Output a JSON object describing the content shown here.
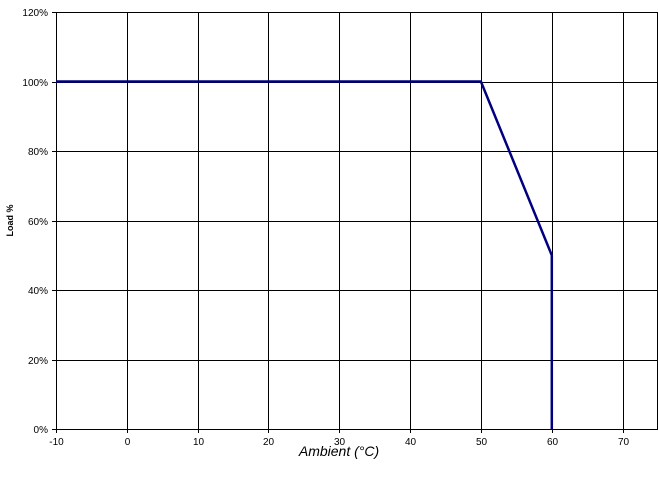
{
  "chart_data": {
    "type": "line",
    "title": "",
    "xlabel": "Ambient (°C)",
    "ylabel": "Load %",
    "xlim": [
      -10,
      75
    ],
    "ylim": [
      0,
      120
    ],
    "x_ticks": [
      -10,
      0,
      10,
      20,
      30,
      40,
      50,
      60,
      70
    ],
    "x_tick_labels": [
      "-10",
      "0",
      "10",
      "20",
      "30",
      "40",
      "50",
      "60",
      "70"
    ],
    "y_ticks": [
      0,
      20,
      40,
      60,
      80,
      100,
      120
    ],
    "y_tick_labels": [
      "0%",
      "20%",
      "40%",
      "60%",
      "80%",
      "100%",
      "120%"
    ],
    "grid": true,
    "legend": "none",
    "series": [
      {
        "color": "#000080",
        "x": [
          -10,
          50,
          60,
          60
        ],
        "y": [
          100,
          100,
          50,
          0
        ]
      }
    ]
  }
}
